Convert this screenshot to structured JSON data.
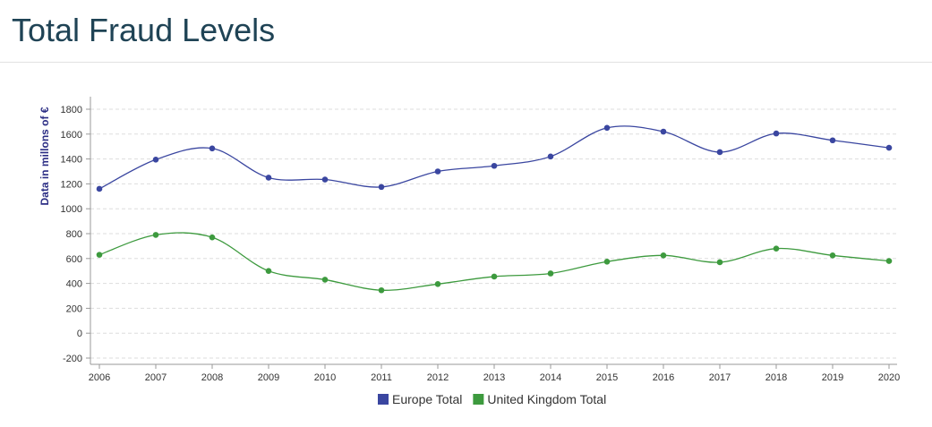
{
  "page": {
    "title": "Total Fraud Levels"
  },
  "chart_data": {
    "type": "line",
    "title": "Total Fraud Levels",
    "xlabel": "",
    "ylabel": "Data in millons of €",
    "x": [
      "2006",
      "2007",
      "2008",
      "2009",
      "2010",
      "2011",
      "2012",
      "2013",
      "2014",
      "2015",
      "2016",
      "2017",
      "2018",
      "2019",
      "2020"
    ],
    "ylim": [
      -200,
      1800
    ],
    "yticks": [
      -200,
      0,
      200,
      400,
      600,
      800,
      1000,
      1200,
      1400,
      1600,
      1800
    ],
    "grid": true,
    "legend": "bottom-center",
    "series": [
      {
        "name": "Europe Total",
        "color": "#3a46a0",
        "values": [
          1160,
          1395,
          1485,
          1250,
          1235,
          1175,
          1300,
          1345,
          1420,
          1650,
          1620,
          1455,
          1605,
          1550,
          1490
        ]
      },
      {
        "name": "United Kingdom Total",
        "color": "#3d9a3e",
        "values": [
          630,
          790,
          770,
          500,
          430,
          345,
          395,
          455,
          480,
          575,
          625,
          570,
          680,
          625,
          580
        ]
      }
    ]
  }
}
